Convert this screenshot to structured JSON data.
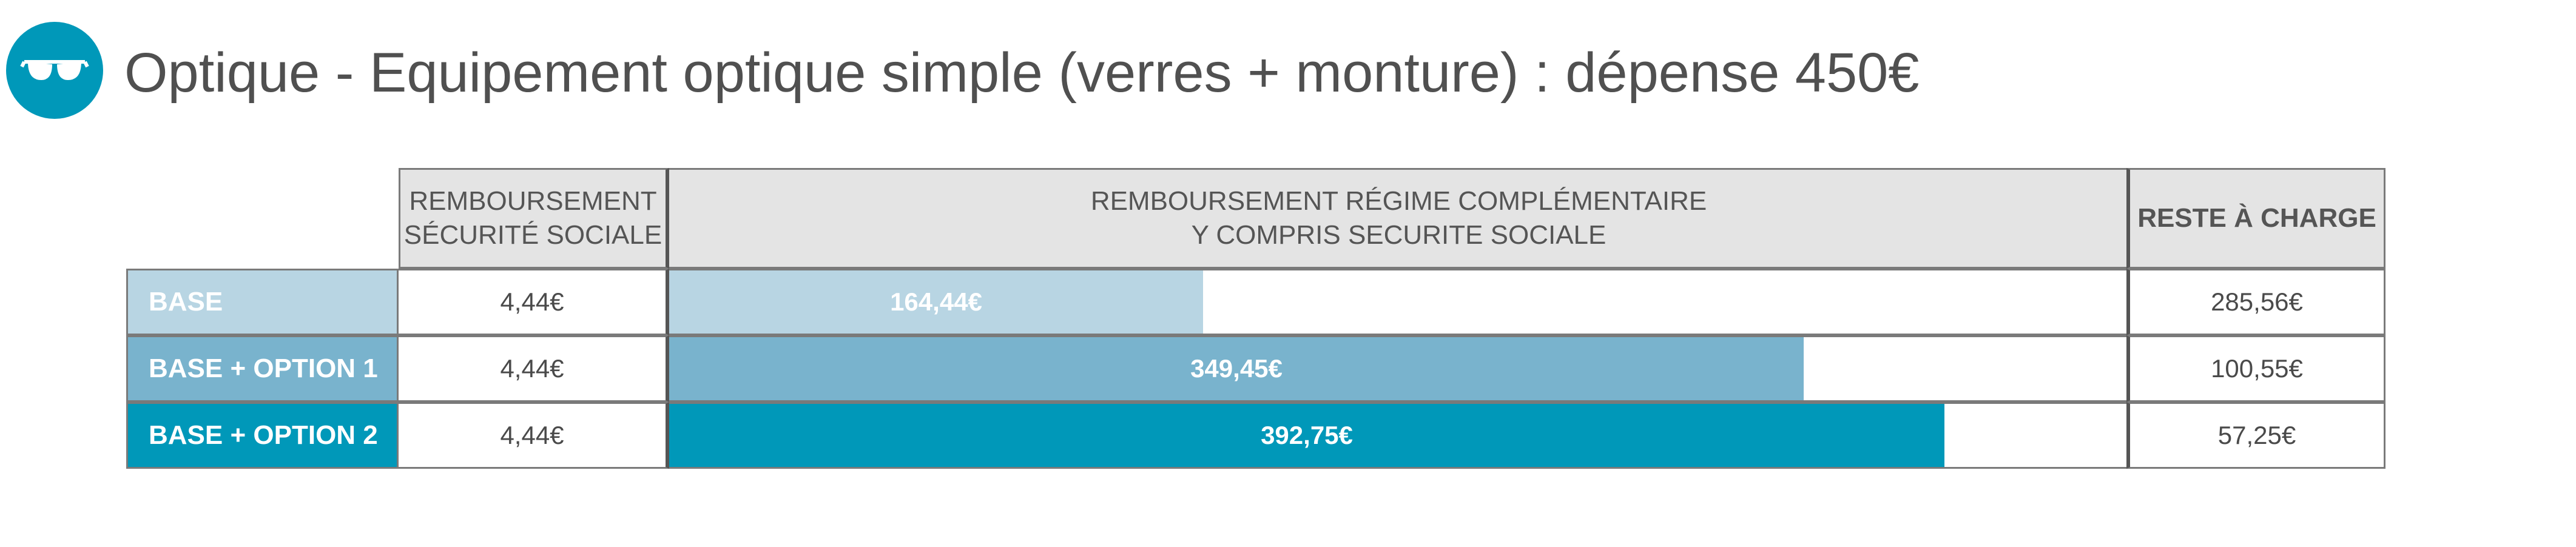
{
  "header": {
    "icon": "glasses-icon",
    "title": "Optique - Equipement optique simple (verres + monture) : dépense 450€"
  },
  "colors": {
    "brand": "#0098b9",
    "base": "#b8d5e3",
    "option1": "#79b3cd",
    "option2": "#0098b9",
    "header_bg": "#e4e4e4"
  },
  "columns": {
    "secu_line1": "REMBOURSEMENT",
    "secu_line2": "SÉCURITÉ SOCIALE",
    "compl_line1": "REMBOURSEMENT RÉGIME COMPLÉMENTAIRE",
    "compl_line2": "Y COMPRIS SECURITE SOCIALE",
    "reste": "RESTE À CHARGE"
  },
  "rows": [
    {
      "label": "BASE",
      "secu": "4,44€",
      "compl": "164,44€",
      "reste": "285,56€"
    },
    {
      "label": "BASE + OPTION 1",
      "secu": "4,44€",
      "compl": "349,45€",
      "reste": "100,55€"
    },
    {
      "label": "BASE + OPTION 2",
      "secu": "4,44€",
      "compl": "392,75€",
      "reste": "57,25€"
    }
  ],
  "chart_data": {
    "type": "bar",
    "orientation": "horizontal",
    "categories": [
      "BASE",
      "BASE + OPTION 1",
      "BASE + OPTION 2"
    ],
    "series": [
      {
        "values": [
          164.44,
          349.45,
          392.75
        ]
      }
    ],
    "xlim": [
      0,
      450
    ],
    "secu_values": [
      4.44,
      4.44,
      4.44
    ],
    "reste_values": [
      285.56,
      100.55,
      57.25
    ],
    "grid": false
  }
}
